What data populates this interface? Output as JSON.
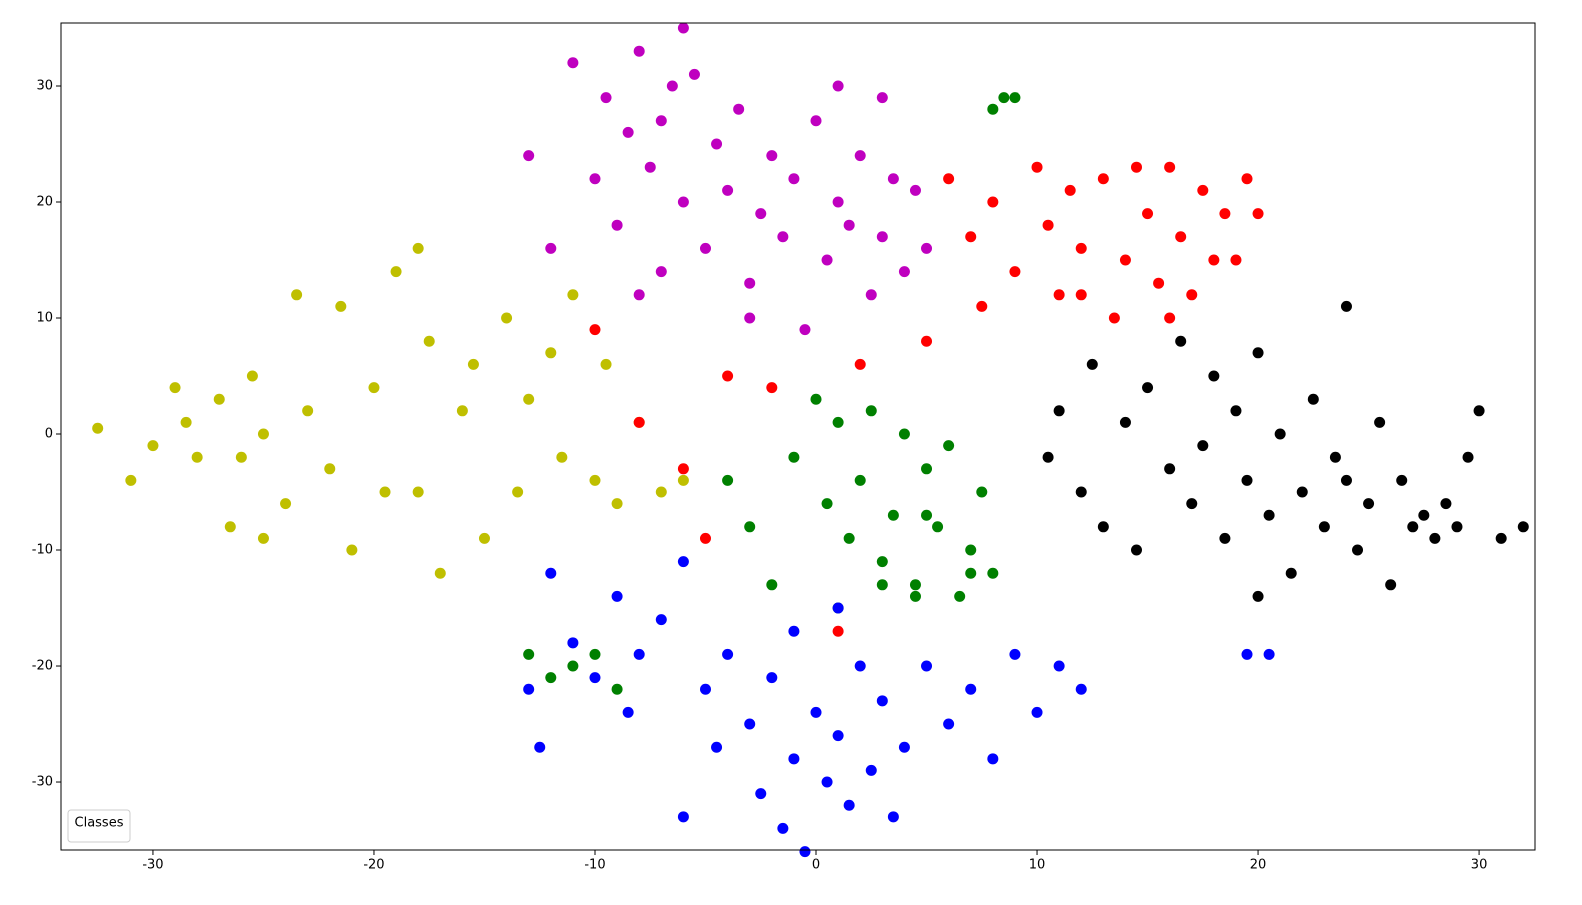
{
  "chart_data": {
    "type": "scatter",
    "xlim": [
      -34.16,
      32.53
    ],
    "ylim": [
      -35.86,
      35.43
    ],
    "xticks": [
      -30,
      -20,
      -10,
      0,
      10,
      20,
      30
    ],
    "yticks": [
      -30,
      -20,
      -10,
      0,
      10,
      20,
      30
    ],
    "legend_title": "Classes",
    "legend_position": "lower left",
    "series": [
      {
        "color": "#bfbf00",
        "x": [
          -32.5,
          -31,
          -30,
          -29,
          -28.5,
          -28,
          -27,
          -26.5,
          -26,
          -25.5,
          -25,
          -24,
          -23.5,
          -23,
          -22,
          -21.5,
          -21,
          -20,
          -19.5,
          -19,
          -18,
          -17.5,
          -17,
          -16,
          -15.5,
          -15,
          -14,
          -13.5,
          -13,
          -12,
          -11.5,
          -11,
          -10,
          -9.5,
          -9,
          -8,
          -7,
          -6,
          -25,
          -18
        ],
        "values": [
          0.5,
          -4,
          -1,
          4,
          1,
          -2,
          3,
          -8,
          -2,
          5,
          0,
          -6,
          12,
          2,
          -3,
          11,
          -10,
          4,
          -5,
          14,
          16,
          8,
          -12,
          2,
          6,
          -9,
          10,
          -5,
          3,
          7,
          -2,
          12,
          -4,
          6,
          -6,
          1,
          -5,
          -4,
          -9,
          -5
        ]
      },
      {
        "color": "#bf00bf",
        "x": [
          -13,
          -11,
          -10,
          -9.5,
          -9,
          -8.5,
          -8,
          -7.5,
          -7,
          -7,
          -6.5,
          -6,
          -5.5,
          -5,
          -4.5,
          -4,
          -3.5,
          -3,
          -2.5,
          -2,
          -1.5,
          -1,
          -0.5,
          0,
          0.5,
          1,
          1.5,
          2,
          2.5,
          3,
          3.5,
          4,
          4.5,
          5,
          -12,
          -6,
          -3,
          1,
          3,
          -8
        ],
        "values": [
          24,
          32,
          22,
          29,
          18,
          26,
          33,
          23,
          27,
          14,
          30,
          20,
          31,
          16,
          25,
          21,
          28,
          13,
          19,
          24,
          17,
          22,
          9,
          27,
          15,
          20,
          18,
          24,
          12,
          17,
          22,
          14,
          21,
          16,
          16,
          35,
          10,
          30,
          29,
          12
        ]
      },
      {
        "color": "#ff0000",
        "x": [
          6,
          7,
          7.5,
          8,
          9,
          10,
          10.5,
          11,
          11.5,
          12,
          13,
          13.5,
          14,
          14.5,
          15,
          15.5,
          16,
          16.5,
          17,
          17.5,
          18,
          18.5,
          19,
          19.5,
          20,
          -4,
          -2,
          -6,
          -8,
          -10,
          2,
          5,
          -5,
          1,
          12,
          16
        ],
        "values": [
          22,
          17,
          11,
          20,
          14,
          23,
          18,
          12,
          21,
          16,
          22,
          10,
          15,
          23,
          19,
          13,
          23,
          17,
          12,
          21,
          15,
          19,
          15,
          22,
          19,
          5,
          4,
          -3,
          1,
          9,
          6,
          8,
          -9,
          -17,
          12,
          10
        ]
      },
      {
        "color": "#008000",
        "x": [
          -1,
          0,
          0.5,
          1,
          1.5,
          2,
          2.5,
          3,
          3.5,
          4,
          4.5,
          5,
          5.5,
          6,
          6.5,
          7,
          7.5,
          8,
          8.5,
          -13,
          -12,
          -11,
          -10,
          -9,
          -3,
          -2,
          1,
          3,
          5,
          7,
          8,
          -4,
          9,
          4.5
        ],
        "values": [
          -2,
          3,
          -6,
          1,
          -9,
          -4,
          2,
          -11,
          -7,
          0,
          -13,
          -3,
          -8,
          -1,
          -14,
          -10,
          -5,
          -12,
          29,
          -19,
          -21,
          -20,
          -19,
          -22,
          -8,
          -13,
          -15,
          -13,
          -7,
          -12,
          28,
          -4,
          29,
          -14
        ]
      },
      {
        "color": "#0000ff",
        "x": [
          -13,
          -12,
          -11,
          -10,
          -9,
          -8.5,
          -8,
          -7,
          -6,
          -5,
          -4.5,
          -4,
          -3,
          -2.5,
          -2,
          -1.5,
          -1,
          -0.5,
          0,
          0.5,
          1,
          1.5,
          2,
          2.5,
          3,
          3.5,
          4,
          5,
          6,
          7,
          8,
          9,
          10,
          11,
          12,
          -6,
          -1,
          1,
          19.5,
          20.5,
          -12.5
        ],
        "values": [
          -22,
          -12,
          -18,
          -21,
          -14,
          -24,
          -19,
          -16,
          -33,
          -22,
          -27,
          -19,
          -25,
          -31,
          -21,
          -34,
          -28,
          -36,
          -24,
          -30,
          -26,
          -32,
          -20,
          -29,
          -23,
          -33,
          -27,
          -20,
          -25,
          -22,
          -28,
          -19,
          -24,
          -20,
          -22,
          -11,
          -17,
          -15,
          -19,
          -19,
          -27
        ]
      },
      {
        "color": "#000000",
        "x": [
          10.5,
          11,
          12,
          12.5,
          13,
          14,
          14.5,
          15,
          16,
          16.5,
          17,
          17.5,
          18,
          18.5,
          19,
          19.5,
          20,
          20.5,
          21,
          21.5,
          22,
          22.5,
          23,
          23.5,
          24,
          24.5,
          25,
          25.5,
          26,
          26.5,
          27,
          27.5,
          28,
          28.5,
          29,
          29.5,
          30,
          31,
          32,
          24,
          20
        ],
        "values": [
          -2,
          2,
          -5,
          6,
          -8,
          1,
          -10,
          4,
          -3,
          8,
          -6,
          -1,
          5,
          -9,
          2,
          -4,
          7,
          -7,
          0,
          -12,
          -5,
          3,
          -8,
          -2,
          11,
          -10,
          -6,
          1,
          -13,
          -4,
          -8,
          -7,
          -9,
          -6,
          -8,
          -2,
          2,
          -9,
          -8,
          -4,
          -14
        ]
      }
    ]
  }
}
